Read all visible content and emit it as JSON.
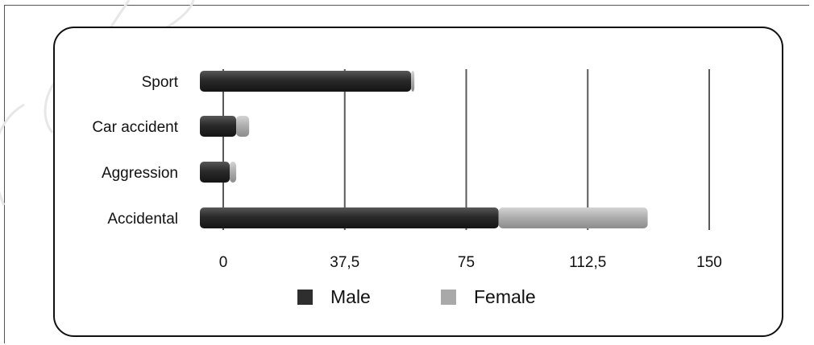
{
  "chart_data": {
    "type": "bar",
    "orientation": "horizontal",
    "stacked": true,
    "categories": [
      "Sport",
      "Car accident",
      "Aggression",
      "Accidental"
    ],
    "series": [
      {
        "name": "Male",
        "values": [
          58,
          4,
          2,
          85
        ],
        "color": "#2e2e2e"
      },
      {
        "name": "Female",
        "values": [
          1,
          4,
          2,
          46
        ],
        "color": "#a9a9a9"
      }
    ],
    "x_ticks": [
      "0",
      "37,5",
      "75",
      "112,5",
      "150"
    ],
    "xlim": [
      0,
      150
    ],
    "grid": "vertical",
    "legend_position": "bottom",
    "xlabel": "",
    "ylabel": ""
  }
}
